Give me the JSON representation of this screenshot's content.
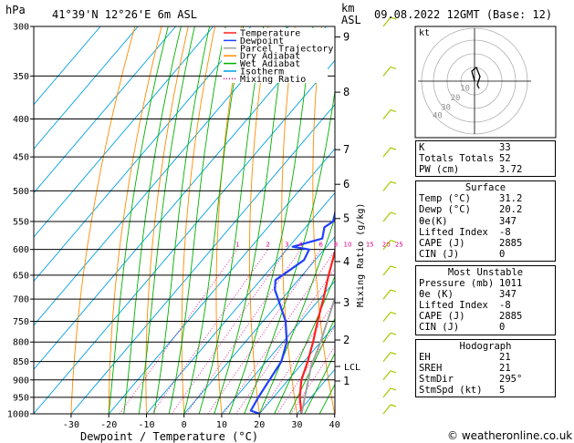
{
  "header": {
    "location": "41°39'N  12°26'E  6m  ASL",
    "datetime": "09.08.2022  12GMT  (Base: 12)",
    "hpa_label": "hPa",
    "km_label": "km",
    "asl_label": "ASL"
  },
  "chart_data": {
    "type": "skew-t",
    "xlabel": "Dewpoint / Temperature (°C)",
    "ylabel_right": "Mixing Ratio (g/kg)",
    "x_ticks": [
      -30,
      -20,
      -10,
      0,
      10,
      20,
      30,
      40
    ],
    "pressure_levels": [
      300,
      350,
      400,
      450,
      500,
      550,
      600,
      650,
      700,
      750,
      800,
      850,
      900,
      950,
      1000
    ],
    "km_ticks": [
      {
        "label": "9",
        "p": 310
      },
      {
        "label": "8",
        "p": 368
      },
      {
        "label": "7",
        "p": 440
      },
      {
        "label": "6",
        "p": 490
      },
      {
        "label": "5",
        "p": 545
      },
      {
        "label": "4",
        "p": 623
      },
      {
        "label": "3",
        "p": 708
      },
      {
        "label": "2",
        "p": 795
      },
      {
        "label": "1",
        "p": 903
      }
    ],
    "lcl_label": "LCL",
    "lcl_p": 863,
    "mixing_ratios": [
      "1",
      "2",
      "3",
      "4",
      "6",
      "8",
      "10",
      "15",
      "20",
      "25"
    ],
    "legend": [
      "Temperature",
      "Dewpoint",
      "Parcel Trajectory",
      "Dry Adiabat",
      "Wet Adiabat",
      "Isotherm",
      "Mixing Ratio"
    ],
    "colors": {
      "temperature": "#ff2020",
      "dewpoint": "#2040ff",
      "parcel": "#a0a0a0",
      "dry_adiabat": "#ff8c00",
      "wet_adiabat": "#00b000",
      "isotherm": "#00a0e0",
      "mixing_ratio": "#e0008a"
    },
    "series": [
      {
        "name": "Temperature",
        "points": [
          [
            1000,
            31.2
          ],
          [
            950,
            27
          ],
          [
            900,
            23.5
          ],
          [
            850,
            21
          ],
          [
            800,
            18
          ],
          [
            750,
            14.5
          ],
          [
            700,
            11
          ],
          [
            650,
            7
          ],
          [
            600,
            3
          ],
          [
            580,
            1.5
          ],
          [
            550,
            -1
          ],
          [
            500,
            -5.5
          ],
          [
            450,
            -11
          ],
          [
            420,
            -15
          ],
          [
            400,
            -18
          ],
          [
            350,
            -25.5
          ],
          [
            320,
            -31
          ],
          [
            300,
            -35
          ]
        ]
      },
      {
        "name": "Dewpoint",
        "points": [
          [
            1000,
            20.2
          ],
          [
            990,
            17
          ],
          [
            950,
            16
          ],
          [
            900,
            15
          ],
          [
            850,
            14
          ],
          [
            800,
            11
          ],
          [
            750,
            6
          ],
          [
            700,
            -1
          ],
          [
            680,
            -4
          ],
          [
            660,
            -6
          ],
          [
            620,
            -3
          ],
          [
            600,
            -4
          ],
          [
            595,
            -9
          ],
          [
            580,
            -3
          ],
          [
            560,
            -5
          ],
          [
            550,
            -4
          ],
          [
            500,
            -9
          ],
          [
            450,
            -14
          ],
          [
            440,
            -14
          ],
          [
            400,
            -21
          ],
          [
            370,
            -29
          ],
          [
            350,
            -24
          ],
          [
            340,
            -21
          ],
          [
            330,
            -31
          ],
          [
            300,
            -36
          ]
        ]
      },
      {
        "name": "Parcel Trajectory",
        "points": [
          [
            1000,
            31.2
          ],
          [
            863,
            23
          ],
          [
            800,
            20
          ],
          [
            700,
            14
          ],
          [
            600,
            7
          ],
          [
            500,
            -1
          ],
          [
            400,
            -11
          ],
          [
            350,
            -18
          ]
        ]
      }
    ]
  },
  "hodograph": {
    "label": "kt",
    "ring_labels": [
      "10",
      "20",
      "30",
      "40"
    ]
  },
  "indices": {
    "k_label": "K",
    "k": "33",
    "tt_label": "Totals Totals",
    "tt": "52",
    "pw_label": "PW (cm)",
    "pw": "3.72"
  },
  "surface": {
    "title": "Surface",
    "rows": [
      {
        "label": "Temp (°C)",
        "value": "31.2"
      },
      {
        "label": "Dewp (°C)",
        "value": "20.2"
      },
      {
        "label": "θe(K)",
        "value": "347"
      },
      {
        "label": "Lifted Index",
        "value": "-8"
      },
      {
        "label": "CAPE (J)",
        "value": "2885"
      },
      {
        "label": "CIN (J)",
        "value": "0"
      }
    ]
  },
  "unstable": {
    "title": "Most Unstable",
    "rows": [
      {
        "label": "Pressure (mb)",
        "value": "1011"
      },
      {
        "label": "θe (K)",
        "value": "347"
      },
      {
        "label": "Lifted Index",
        "value": "-8"
      },
      {
        "label": "CAPE (J)",
        "value": "2885"
      },
      {
        "label": "CIN (J)",
        "value": "0"
      }
    ]
  },
  "hodo_table": {
    "title": "Hodograph",
    "rows": [
      {
        "label": "EH",
        "value": "21"
      },
      {
        "label": "SREH",
        "value": "21"
      },
      {
        "label": "StmDir",
        "value": "295°"
      },
      {
        "label": "StmSpd (kt)",
        "value": "5"
      }
    ]
  },
  "footer": {
    "text": "© weatheronline.co.uk"
  }
}
